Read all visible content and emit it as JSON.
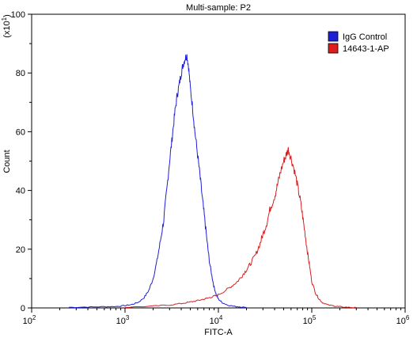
{
  "chart_data": {
    "type": "line",
    "title": "Multi-sample: P2",
    "xlabel": "FITC-A",
    "ylabel": "Count",
    "y_multiplier_label": "(x10",
    "y_multiplier_exponent": "1",
    "x_scale": "log",
    "xlim": [
      100,
      1000000
    ],
    "ylim": [
      0,
      100
    ],
    "x_ticks": [
      {
        "value": 100,
        "base": "10",
        "exp": "2"
      },
      {
        "value": 1000,
        "base": "10",
        "exp": "3"
      },
      {
        "value": 10000,
        "base": "10",
        "exp": "4"
      },
      {
        "value": 100000,
        "base": "10",
        "exp": "5"
      },
      {
        "value": 1000000,
        "base": "10",
        "exp": "6"
      }
    ],
    "y_ticks": [
      "0",
      "20",
      "40",
      "60",
      "80",
      "100"
    ],
    "legend_position": "top-right",
    "series": [
      {
        "name": "IgG Control",
        "color": "#1f1fd6",
        "points": [
          [
            250,
            0.2
          ],
          [
            400,
            0.3
          ],
          [
            600,
            0.4
          ],
          [
            800,
            0.5
          ],
          [
            1000,
            0.8
          ],
          [
            1200,
            1.2
          ],
          [
            1400,
            2.0
          ],
          [
            1600,
            3.5
          ],
          [
            1800,
            6.0
          ],
          [
            2000,
            10
          ],
          [
            2200,
            16
          ],
          [
            2400,
            23
          ],
          [
            2600,
            30
          ],
          [
            2800,
            40
          ],
          [
            3000,
            50
          ],
          [
            3200,
            58
          ],
          [
            3400,
            66
          ],
          [
            3600,
            72
          ],
          [
            3800,
            76
          ],
          [
            4000,
            80
          ],
          [
            4200,
            83
          ],
          [
            4400,
            85
          ],
          [
            4600,
            86
          ],
          [
            4800,
            82
          ],
          [
            5000,
            75
          ],
          [
            5300,
            68
          ],
          [
            5600,
            60
          ],
          [
            6000,
            52
          ],
          [
            6400,
            44
          ],
          [
            6800,
            36
          ],
          [
            7200,
            29
          ],
          [
            7600,
            22
          ],
          [
            8000,
            16
          ],
          [
            8500,
            11
          ],
          [
            9000,
            7
          ],
          [
            9500,
            4.5
          ],
          [
            10000,
            3
          ],
          [
            11000,
            1.8
          ],
          [
            12500,
            1.0
          ],
          [
            15000,
            0.5
          ],
          [
            18000,
            0.3
          ],
          [
            20000,
            0.2
          ]
        ]
      },
      {
        "name": "14643-1-AP",
        "color": "#dc1e1e",
        "points": [
          [
            1000,
            0.2
          ],
          [
            2000,
            0.6
          ],
          [
            3000,
            1.0
          ],
          [
            4000,
            1.5
          ],
          [
            5000,
            2.0
          ],
          [
            6000,
            2.5
          ],
          [
            7000,
            3.0
          ],
          [
            8000,
            3.5
          ],
          [
            9000,
            4.0
          ],
          [
            10000,
            4.5
          ],
          [
            12000,
            6.0
          ],
          [
            14000,
            7.5
          ],
          [
            16000,
            9.0
          ],
          [
            18000,
            11
          ],
          [
            20000,
            13
          ],
          [
            22000,
            15
          ],
          [
            25000,
            18
          ],
          [
            28000,
            22
          ],
          [
            30000,
            25
          ],
          [
            33000,
            29
          ],
          [
            36000,
            34
          ],
          [
            40000,
            38
          ],
          [
            43000,
            42
          ],
          [
            46000,
            46
          ],
          [
            50000,
            50
          ],
          [
            53000,
            52
          ],
          [
            56000,
            54
          ],
          [
            60000,
            51
          ],
          [
            65000,
            47
          ],
          [
            70000,
            42
          ],
          [
            75000,
            37
          ],
          [
            80000,
            31
          ],
          [
            85000,
            25
          ],
          [
            90000,
            19
          ],
          [
            95000,
            14
          ],
          [
            100000,
            9
          ],
          [
            110000,
            5
          ],
          [
            120000,
            3
          ],
          [
            130000,
            1.8
          ],
          [
            150000,
            1.0
          ],
          [
            180000,
            0.6
          ],
          [
            200000,
            0.4
          ],
          [
            250000,
            0.2
          ],
          [
            300000,
            0.1
          ]
        ]
      }
    ]
  }
}
